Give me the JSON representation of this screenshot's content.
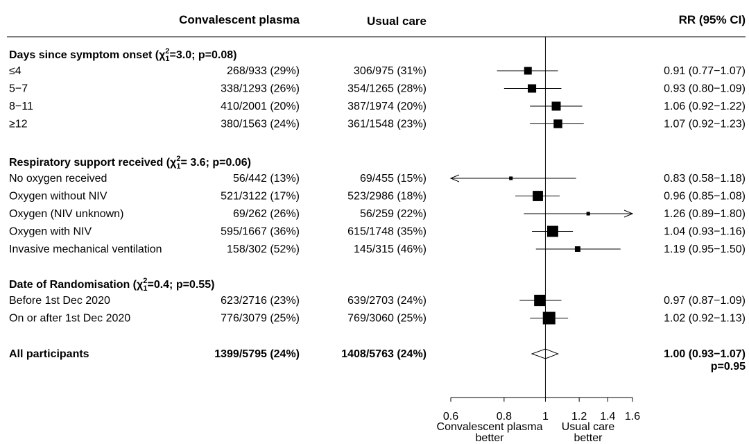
{
  "colors": {
    "ink": "#000000",
    "background": "#ffffff"
  },
  "chart_data": {
    "type": "forest",
    "headers": {
      "group1": "Convalescent plasma",
      "group2": "Usual care",
      "effect": "RR (95% CI)"
    },
    "x_axis": {
      "scale": "log",
      "ticks": [
        0.6,
        0.8,
        1,
        1.2,
        1.4,
        1.6
      ],
      "tick_labels": [
        "0.6",
        "0.8",
        "1",
        "1.2",
        "1.4",
        "1.6"
      ]
    },
    "favours": {
      "left": [
        "Convalescent plasma",
        "better"
      ],
      "right": [
        "Usual care",
        "better"
      ]
    },
    "sections": [
      {
        "title": "Days since symptom onset",
        "stat_sup": "2",
        "stat_sub": "1",
        "stat_rest": "=3.0; p=0.08)",
        "rows": [
          {
            "label": "≤4",
            "g1": "268/933 (29%)",
            "g2": "306/975 (31%)",
            "rr": 0.91,
            "lo": 0.77,
            "hi": 1.07,
            "rr_text": "0.91 (0.77−1.07)",
            "weight": 574
          },
          {
            "label": "5−7",
            "g1": "338/1293 (26%)",
            "g2": "354/1265 (28%)",
            "rr": 0.93,
            "lo": 0.8,
            "hi": 1.09,
            "rr_text": "0.93 (0.80−1.09)",
            "weight": 692
          },
          {
            "label": "8−11",
            "g1": "410/2001 (20%)",
            "g2": "387/1974 (20%)",
            "rr": 1.06,
            "lo": 0.92,
            "hi": 1.22,
            "rr_text": "1.06 (0.92−1.22)",
            "weight": 797
          },
          {
            "label": "≥12",
            "g1": "380/1563 (24%)",
            "g2": "361/1548 (23%)",
            "rr": 1.07,
            "lo": 0.92,
            "hi": 1.23,
            "rr_text": "1.07 (0.92−1.23)",
            "weight": 741
          }
        ]
      },
      {
        "title": "Respiratory support received",
        "stat_sup": "2",
        "stat_sub": "1",
        "stat_rest": "= 3.6; p=0.06)",
        "rows": [
          {
            "label": "No oxygen received",
            "g1": "56/442 (13%)",
            "g2": "69/455 (15%)",
            "rr": 0.83,
            "lo": 0.58,
            "hi": 1.18,
            "rr_text": "0.83 (0.58−1.18)",
            "weight": 125
          },
          {
            "label": "Oxygen without NIV",
            "g1": "521/3122 (17%)",
            "g2": "523/2986 (18%)",
            "rr": 0.96,
            "lo": 0.85,
            "hi": 1.08,
            "rr_text": "0.96 (0.85−1.08)",
            "weight": 1044
          },
          {
            "label": "Oxygen (NIV unknown)",
            "g1": "69/262 (26%)",
            "g2": "56/259 (22%)",
            "rr": 1.26,
            "lo": 0.89,
            "hi": 1.8,
            "rr_text": "1.26 (0.89−1.80)",
            "weight": 125
          },
          {
            "label": "Oxygen with NIV",
            "g1": "595/1667 (36%)",
            "g2": "615/1748 (35%)",
            "rr": 1.04,
            "lo": 0.93,
            "hi": 1.16,
            "rr_text": "1.04 (0.93−1.16)",
            "weight": 1210
          },
          {
            "label": "Invasive mechanical ventilation",
            "g1": "158/302 (52%)",
            "g2": "145/315 (46%)",
            "rr": 1.19,
            "lo": 0.95,
            "hi": 1.5,
            "rr_text": "1.19 (0.95−1.50)",
            "weight": 303
          }
        ]
      },
      {
        "title": "Date of Randomisation",
        "stat_sup": "2",
        "stat_sub": "1",
        "stat_rest": "=0.4; p=0.55)",
        "rows": [
          {
            "label": "Before 1st Dec 2020",
            "g1": "623/2716 (23%)",
            "g2": "639/2703 (24%)",
            "rr": 0.97,
            "lo": 0.87,
            "hi": 1.09,
            "rr_text": "0.97 (0.87−1.09)",
            "weight": 1262
          },
          {
            "label": "On or after 1st Dec 2020",
            "g1": "776/3079 (25%)",
            "g2": "769/3060 (25%)",
            "rr": 1.02,
            "lo": 0.92,
            "hi": 1.13,
            "rr_text": "1.02 (0.92−1.13)",
            "weight": 1545
          }
        ]
      }
    ],
    "overall": {
      "label": "All participants",
      "g1": "1399/5795 (24%)",
      "g2": "1408/5763 (24%)",
      "rr": 1.0,
      "lo": 0.93,
      "hi": 1.07,
      "rr_text": "1.00 (0.93−1.07)",
      "p_text": "p=0.95"
    }
  }
}
